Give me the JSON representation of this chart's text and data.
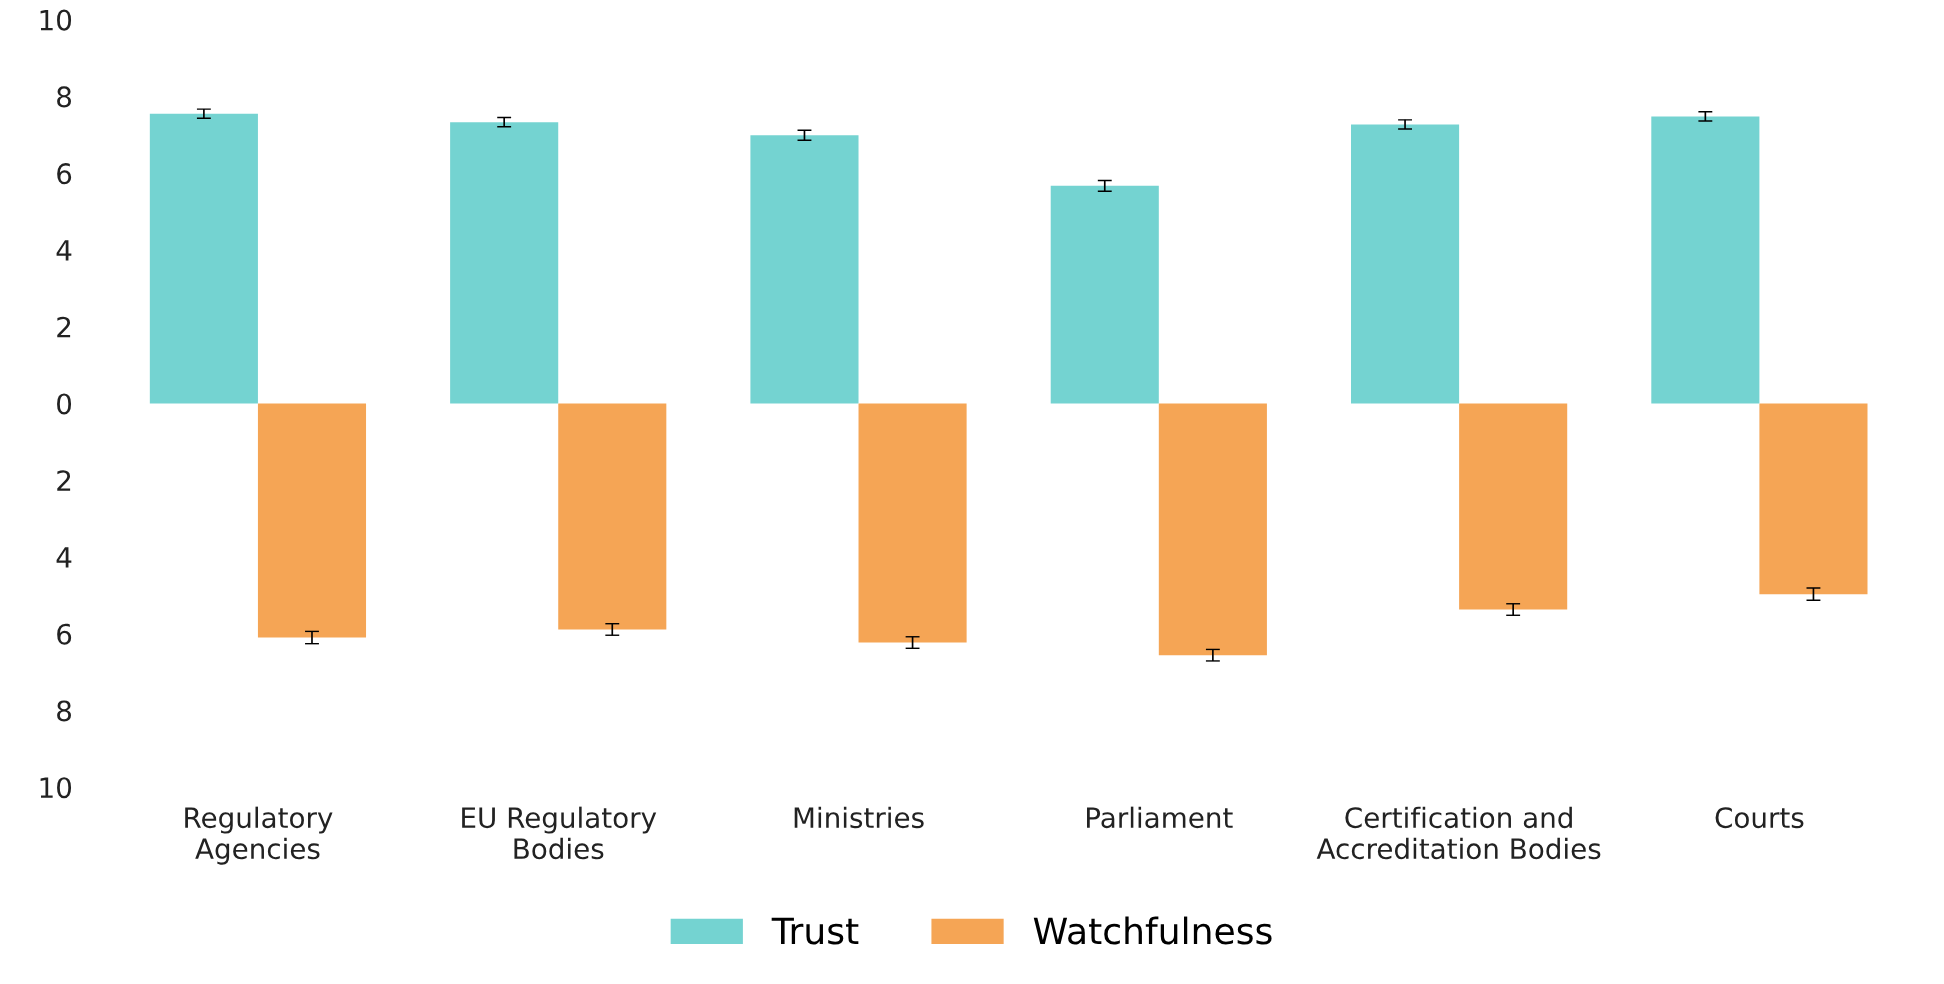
{
  "chart_data": {
    "type": "bar",
    "categories": [
      "Regulatory Agencies",
      "EU Regulatory Bodies",
      "Ministries",
      "Parliament",
      "Certification and Accreditation Bodies",
      "Courts"
    ],
    "series": [
      {
        "name": "Trust",
        "color": "#74d3d1",
        "values": [
          7.55,
          7.33,
          6.99,
          5.67,
          7.27,
          7.48
        ],
        "errors": [
          0.12,
          0.12,
          0.13,
          0.14,
          0.12,
          0.12
        ]
      },
      {
        "name": "Watchfulness",
        "color": "#f5a555",
        "values": [
          -6.1,
          -5.89,
          -6.23,
          -6.56,
          -5.37,
          -4.97
        ],
        "errors": [
          0.16,
          0.15,
          0.15,
          0.15,
          0.15,
          0.16
        ]
      }
    ],
    "ylim": [
      -10,
      10
    ],
    "yticks": [
      {
        "value": -10,
        "label": "10"
      },
      {
        "value": -8,
        "label": "8"
      },
      {
        "value": -6,
        "label": "6"
      },
      {
        "value": -4,
        "label": "4"
      },
      {
        "value": -2,
        "label": "2"
      },
      0,
      2,
      4,
      6,
      8,
      10
    ],
    "grid": false,
    "legend": "bottom"
  }
}
